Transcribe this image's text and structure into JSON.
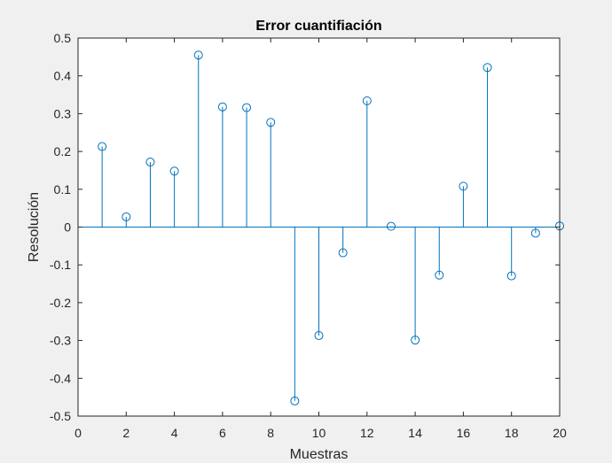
{
  "chart_data": {
    "type": "stem",
    "title": "Error cuantifiación",
    "xlabel": "Muestras",
    "ylabel": "Resolución",
    "xlim": [
      0,
      20
    ],
    "ylim": [
      -0.5,
      0.5
    ],
    "xticks": [
      "0",
      "2",
      "4",
      "6",
      "8",
      "10",
      "12",
      "14",
      "16",
      "18",
      "20"
    ],
    "yticks": [
      "-0.5",
      "-0.4",
      "-0.3",
      "-0.2",
      "-0.1",
      "0",
      "0.1",
      "0.2",
      "0.3",
      "0.4",
      "0.5"
    ],
    "grid": false,
    "series": [
      {
        "x": [
          1,
          2,
          3,
          4,
          5,
          6,
          7,
          8,
          9,
          10,
          11,
          12,
          13,
          14,
          15,
          16,
          17,
          18,
          19,
          20
        ],
        "values": [
          0.213,
          0.027,
          0.172,
          0.148,
          0.455,
          0.318,
          0.316,
          0.277,
          -0.46,
          -0.287,
          -0.068,
          0.334,
          0.002,
          -0.299,
          -0.127,
          0.108,
          0.422,
          -0.129,
          -0.016,
          0.003
        ]
      }
    ]
  },
  "colors": {
    "series": "#0072BD",
    "axes": "#262626",
    "plot_bg": "#ffffff",
    "figure_bg": "#f0f0f0"
  }
}
